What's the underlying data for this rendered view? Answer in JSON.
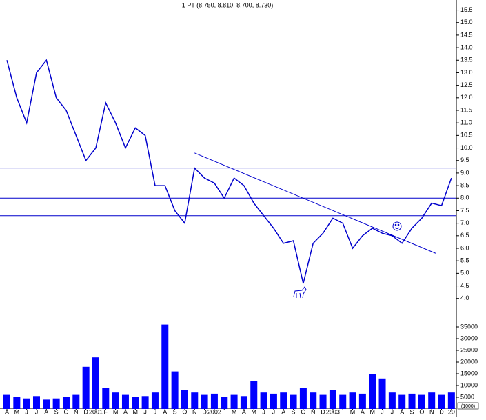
{
  "chart_data": {
    "type": "line",
    "title": "1 PT (8.750, 8.810, 8.700, 8.730)",
    "categories": [
      "A",
      "M",
      "J",
      "J",
      "A",
      "S",
      "O",
      "N",
      "D",
      "2001",
      "F",
      "M",
      "A",
      "M",
      "J",
      "J",
      "A",
      "S",
      "O",
      "N",
      "D",
      "2002",
      null,
      "M",
      "A",
      "M",
      "J",
      "J",
      "A",
      "S",
      "O",
      "N",
      "D",
      "2003",
      null,
      "M",
      "A",
      "M",
      "J",
      "J",
      "A",
      "S",
      "O",
      "N",
      "D",
      "20"
    ],
    "series": [
      {
        "color": "#0000cc",
        "values": [
          13.5,
          12.0,
          11.0,
          13.0,
          13.5,
          12.0,
          11.5,
          10.5,
          9.5,
          10.0,
          11.8,
          11.0,
          10.0,
          10.8,
          10.5,
          8.5,
          8.5,
          7.5,
          7.0,
          9.2,
          8.8,
          8.6,
          8.0,
          8.8,
          8.5,
          7.8,
          7.3,
          6.8,
          6.2,
          6.3,
          4.6,
          6.2,
          6.6,
          7.2,
          7.0,
          6.0,
          6.5,
          6.8,
          6.6,
          6.5,
          6.2,
          6.8,
          7.2,
          7.8,
          7.7,
          8.8
        ]
      },
      {
        "type": "bar",
        "axis": "y2",
        "color": "#0000ff",
        "values": [
          6000,
          5000,
          4500,
          5500,
          4000,
          4500,
          5000,
          6000,
          18000,
          22000,
          9000,
          7000,
          6000,
          5000,
          5500,
          7000,
          36000,
          16000,
          8000,
          7000,
          6000,
          6500,
          5000,
          6000,
          5500,
          12000,
          7000,
          6500,
          7000,
          6000,
          9000,
          7000,
          6000,
          8000,
          6000,
          7000,
          6500,
          15000,
          13000,
          7000,
          6000,
          6500,
          6000,
          7000,
          6000,
          7000
        ]
      }
    ],
    "ylim": [
      3.25,
      15.9
    ],
    "yticks": [
      {
        "value": 4,
        "label": "4.0"
      },
      4.5,
      {
        "value": 5,
        "label": "5.0"
      },
      5.5,
      {
        "value": 6,
        "label": "6.0"
      },
      6.5,
      {
        "value": 7,
        "label": "7.0"
      },
      7.5,
      {
        "value": 8,
        "label": "8.0"
      },
      8.5,
      {
        "value": 9,
        "label": "9.0"
      },
      9.5,
      {
        "value": 10,
        "label": "10.0"
      },
      10.5,
      {
        "value": 11,
        "label": "11.0"
      },
      11.5,
      {
        "value": 12,
        "label": "12.0"
      },
      12.5,
      {
        "value": 13,
        "label": "13.0"
      },
      13.5,
      {
        "value": 14,
        "label": "14.0"
      },
      14.5,
      {
        "value": 15,
        "label": "15.0"
      },
      15.5
    ],
    "y2lim": [
      0,
      40000
    ],
    "y2ticks": [
      5000,
      10000,
      15000,
      20000,
      25000,
      30000,
      35000
    ],
    "y2label": "(1000)",
    "hlines": [
      9.2,
      8.0,
      7.3
    ],
    "trendline": {
      "x": [
        19,
        43.4
      ],
      "y": [
        9.8,
        5.8
      ]
    }
  }
}
